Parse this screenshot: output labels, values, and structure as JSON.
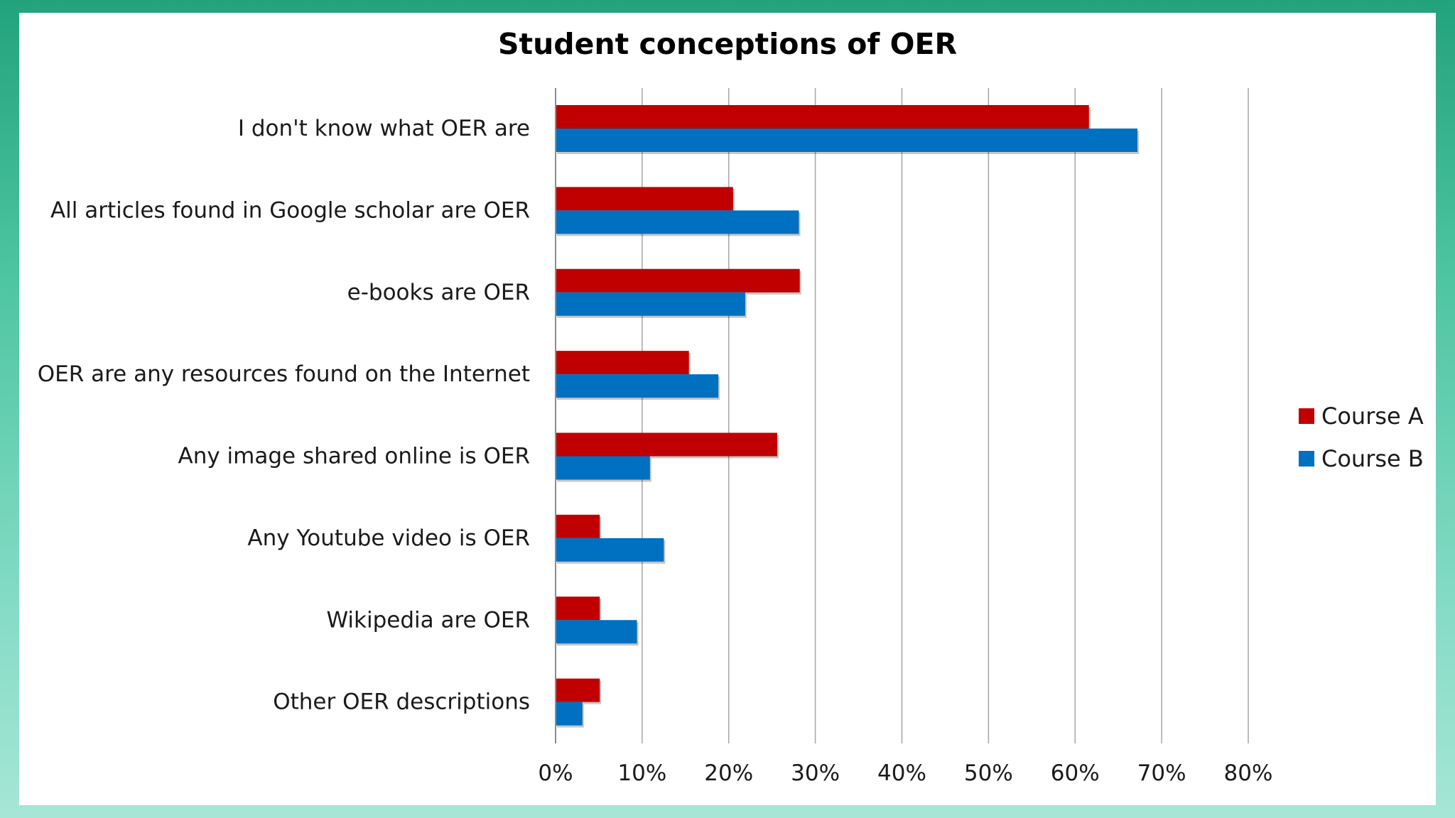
{
  "chart_data": {
    "type": "bar",
    "orientation": "horizontal",
    "title": "Student conceptions of OER",
    "xlabel": "",
    "ylabel": "",
    "xlim": [
      0,
      80
    ],
    "x_ticks": [
      "0%",
      "10%",
      "20%",
      "30%",
      "40%",
      "50%",
      "60%",
      "70%",
      "80%"
    ],
    "x_tick_values": [
      0,
      10,
      20,
      30,
      40,
      50,
      60,
      70,
      80
    ],
    "grid": true,
    "legend_position": "right",
    "categories": [
      "I don't know what OER are",
      "All articles found in Google scholar are OER",
      "e-books are OER",
      "OER are any resources found on the Internet",
      "Any image shared online is OER",
      "Any Youtube video is OER",
      "Wikipedia are OER",
      "Other OER descriptions"
    ],
    "series": [
      {
        "name": "Course A",
        "color": "#c00000",
        "values": [
          61.6,
          20.5,
          28.2,
          15.4,
          25.6,
          5.1,
          5.1,
          5.1
        ]
      },
      {
        "name": "Course B",
        "color": "#0070c0",
        "values": [
          67.2,
          28.1,
          21.9,
          18.8,
          10.9,
          12.5,
          9.4,
          3.1
        ]
      }
    ]
  }
}
